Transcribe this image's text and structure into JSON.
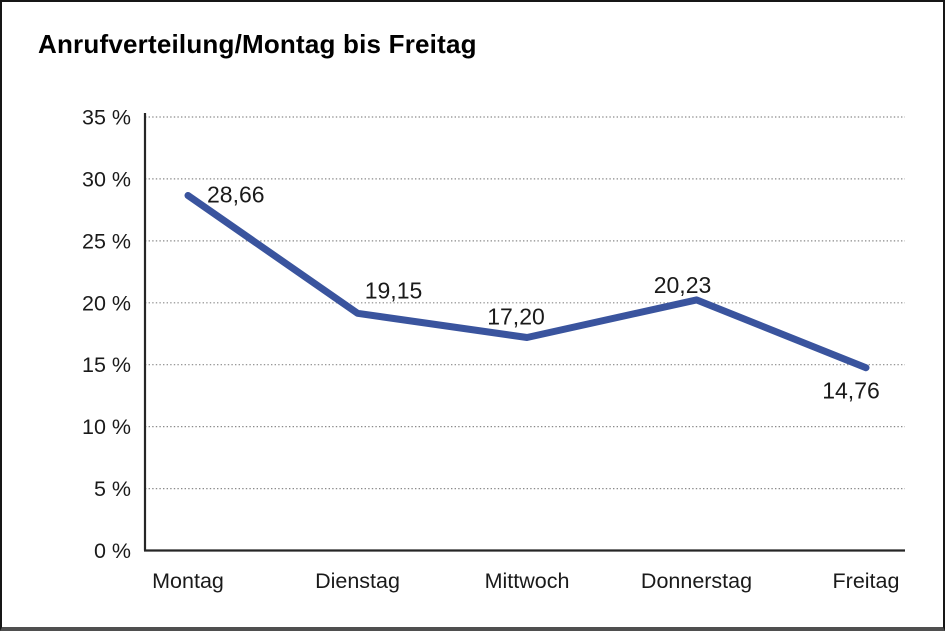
{
  "chart_data": {
    "type": "line",
    "title": "Anrufverteilung/Montag bis Freitag",
    "categories": [
      "Montag",
      "Dienstag",
      "Mittwoch",
      "Donnerstag",
      "Freitag"
    ],
    "values": [
      28.66,
      19.15,
      17.2,
      20.23,
      14.76
    ],
    "value_labels": [
      "28,66",
      "19,15",
      "17,20",
      "20,23",
      "14,76"
    ],
    "xlabel": "",
    "ylabel": "",
    "ylim": [
      0,
      35
    ],
    "y_step": 5,
    "y_tick_labels": [
      "0 %",
      "5 %",
      "10 %",
      "15 %",
      "20 %",
      "25 %",
      "30 %",
      "35 %"
    ],
    "grid": "horizontal-dotted",
    "legend": "none",
    "line_color": "#3a549e",
    "axis_color": "#262626",
    "grid_color": "#8a8a8a",
    "label_color": "#1a1a1a"
  }
}
